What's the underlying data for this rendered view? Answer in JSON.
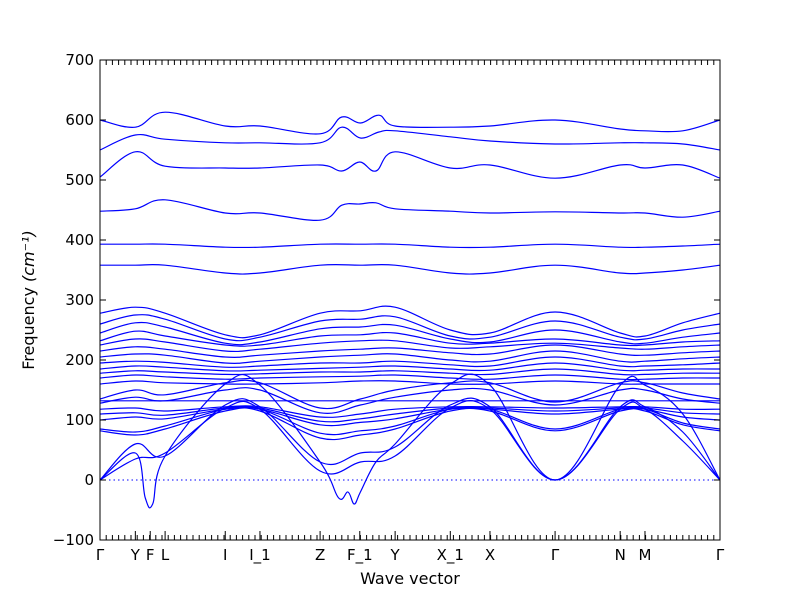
{
  "chart_data": {
    "type": "line",
    "title": "",
    "xlabel": "Wave vector",
    "ylabel": "Frequency",
    "ylabel_unit": "(cm⁻¹)",
    "ylim": [
      -100,
      700
    ],
    "yticks": [
      -100,
      0,
      100,
      200,
      300,
      400,
      500,
      600,
      700
    ],
    "grid": false,
    "legend": "none",
    "line_color": "#0000ff",
    "reference_line": {
      "y": 0,
      "style": "dotted"
    },
    "high_symmetry_points": [
      {
        "label": "Γ",
        "x": 0
      },
      {
        "label": "Y",
        "x": 0.057
      },
      {
        "label": "F",
        "x": 0.081
      },
      {
        "label": "L",
        "x": 0.105
      },
      {
        "label": "I",
        "x": 0.202
      },
      {
        "label": "I_1",
        "x": 0.258
      },
      {
        "label": "Z",
        "x": 0.355
      },
      {
        "label": "F_1",
        "x": 0.419
      },
      {
        "label": "Y",
        "x": 0.476
      },
      {
        "label": "X_1",
        "x": 0.565
      },
      {
        "label": "X",
        "x": 0.629
      },
      {
        "label": "Γ",
        "x": 0.734
      },
      {
        "label": "N",
        "x": 0.839
      },
      {
        "label": "M",
        "x": 0.879
      },
      {
        "label": "Γ",
        "x": 1.0
      }
    ],
    "series": [
      {
        "x": [
          0,
          0.057,
          0.105,
          0.202,
          0.258,
          0.355,
          0.39,
          0.42,
          0.45,
          0.476,
          0.565,
          0.629,
          0.734,
          0.839,
          0.879,
          0.94,
          1.0
        ],
        "y": [
          600,
          588,
          613,
          590,
          590,
          577,
          605,
          595,
          608,
          590,
          588,
          590,
          600,
          585,
          582,
          582,
          600
        ]
      },
      {
        "x": [
          0,
          0.057,
          0.105,
          0.202,
          0.258,
          0.355,
          0.39,
          0.42,
          0.45,
          0.476,
          0.565,
          0.629,
          0.734,
          0.839,
          0.879,
          0.94,
          1.0
        ],
        "y": [
          550,
          575,
          568,
          562,
          562,
          562,
          588,
          570,
          580,
          582,
          572,
          565,
          560,
          562,
          562,
          560,
          550
        ]
      },
      {
        "x": [
          0,
          0.057,
          0.105,
          0.202,
          0.258,
          0.355,
          0.39,
          0.419,
          0.445,
          0.476,
          0.565,
          0.629,
          0.734,
          0.839,
          0.879,
          0.94,
          1.0
        ],
        "y": [
          505,
          547,
          523,
          520,
          520,
          525,
          515,
          530,
          515,
          547,
          520,
          525,
          503,
          525,
          520,
          525,
          503
        ]
      },
      {
        "x": [
          0,
          0.057,
          0.105,
          0.202,
          0.258,
          0.355,
          0.39,
          0.419,
          0.445,
          0.476,
          0.565,
          0.629,
          0.734,
          0.839,
          0.879,
          0.94,
          1.0
        ],
        "y": [
          448,
          452,
          467,
          445,
          445,
          433,
          458,
          460,
          462,
          452,
          448,
          445,
          447,
          445,
          445,
          438,
          448
        ]
      },
      {
        "x": [
          0,
          0.057,
          0.105,
          0.202,
          0.258,
          0.355,
          0.42,
          0.476,
          0.565,
          0.629,
          0.734,
          0.839,
          0.879,
          0.94,
          1.0
        ],
        "y": [
          393,
          393,
          393,
          388,
          388,
          393,
          393,
          393,
          388,
          388,
          393,
          388,
          388,
          390,
          393
        ]
      },
      {
        "x": [
          0,
          0.057,
          0.105,
          0.202,
          0.258,
          0.355,
          0.42,
          0.476,
          0.565,
          0.629,
          0.734,
          0.839,
          0.879,
          0.94,
          1.0
        ],
        "y": [
          358,
          358,
          358,
          345,
          345,
          358,
          358,
          358,
          345,
          345,
          358,
          345,
          345,
          350,
          358
        ]
      },
      {
        "x": [
          0,
          0.057,
          0.105,
          0.202,
          0.258,
          0.355,
          0.42,
          0.476,
          0.565,
          0.629,
          0.734,
          0.839,
          0.879,
          0.94,
          1.0
        ],
        "y": [
          278,
          288,
          278,
          242,
          242,
          278,
          282,
          288,
          250,
          245,
          280,
          245,
          240,
          262,
          278
        ]
      },
      {
        "x": [
          0,
          0.057,
          0.105,
          0.202,
          0.258,
          0.355,
          0.42,
          0.476,
          0.565,
          0.629,
          0.734,
          0.839,
          0.879,
          0.94,
          1.0
        ],
        "y": [
          260,
          275,
          268,
          235,
          238,
          265,
          268,
          272,
          240,
          238,
          265,
          238,
          235,
          250,
          260
        ]
      },
      {
        "x": [
          0,
          0.057,
          0.105,
          0.202,
          0.258,
          0.355,
          0.42,
          0.476,
          0.565,
          0.629,
          0.734,
          0.839,
          0.879,
          0.94,
          1.0
        ],
        "y": [
          245,
          262,
          255,
          228,
          230,
          252,
          255,
          258,
          235,
          230,
          250,
          230,
          228,
          238,
          245
        ]
      },
      {
        "x": [
          0,
          0.057,
          0.105,
          0.202,
          0.258,
          0.355,
          0.42,
          0.476,
          0.565,
          0.629,
          0.734,
          0.839,
          0.879,
          0.94,
          1.0
        ],
        "y": [
          232,
          248,
          240,
          225,
          225,
          240,
          242,
          245,
          228,
          228,
          235,
          225,
          225,
          230,
          232
        ]
      },
      {
        "x": [
          0,
          0.057,
          0.105,
          0.202,
          0.258,
          0.355,
          0.42,
          0.476,
          0.565,
          0.629,
          0.734,
          0.839,
          0.879,
          0.94,
          1.0
        ],
        "y": [
          225,
          235,
          230,
          215,
          218,
          228,
          232,
          232,
          220,
          222,
          228,
          220,
          218,
          222,
          225
        ]
      },
      {
        "x": [
          0,
          0.057,
          0.105,
          0.202,
          0.258,
          0.355,
          0.42,
          0.476,
          0.565,
          0.629,
          0.734,
          0.839,
          0.879,
          0.94,
          1.0
        ],
        "y": [
          215,
          222,
          218,
          205,
          208,
          215,
          218,
          220,
          212,
          210,
          225,
          210,
          208,
          212,
          215
        ]
      },
      {
        "x": [
          0,
          0.057,
          0.105,
          0.202,
          0.258,
          0.355,
          0.42,
          0.476,
          0.565,
          0.629,
          0.734,
          0.839,
          0.879,
          0.94,
          1.0
        ],
        "y": [
          205,
          210,
          208,
          195,
          198,
          205,
          208,
          210,
          200,
          198,
          215,
          198,
          198,
          202,
          205
        ]
      },
      {
        "x": [
          0,
          0.057,
          0.105,
          0.202,
          0.258,
          0.355,
          0.42,
          0.476,
          0.565,
          0.629,
          0.734,
          0.839,
          0.879,
          0.94,
          1.0
        ],
        "y": [
          195,
          198,
          196,
          188,
          190,
          195,
          195,
          198,
          192,
          190,
          205,
          190,
          190,
          192,
          195
        ]
      },
      {
        "x": [
          0,
          0.057,
          0.105,
          0.202,
          0.258,
          0.355,
          0.42,
          0.476,
          0.565,
          0.629,
          0.734,
          0.839,
          0.879,
          0.94,
          1.0
        ],
        "y": [
          185,
          190,
          188,
          182,
          183,
          186,
          188,
          190,
          185,
          183,
          195,
          183,
          183,
          185,
          185
        ]
      },
      {
        "x": [
          0,
          0.057,
          0.105,
          0.202,
          0.258,
          0.355,
          0.42,
          0.476,
          0.565,
          0.629,
          0.734,
          0.839,
          0.879,
          0.94,
          1.0
        ],
        "y": [
          178,
          182,
          180,
          176,
          177,
          180,
          180,
          182,
          178,
          176,
          185,
          176,
          176,
          178,
          178
        ]
      },
      {
        "x": [
          0,
          0.057,
          0.105,
          0.202,
          0.258,
          0.355,
          0.42,
          0.476,
          0.565,
          0.629,
          0.734,
          0.839,
          0.879,
          0.94,
          1.0
        ],
        "y": [
          170,
          175,
          172,
          168,
          170,
          172,
          173,
          175,
          170,
          168,
          175,
          168,
          168,
          170,
          170
        ]
      },
      {
        "x": [
          0,
          0.057,
          0.105,
          0.202,
          0.258,
          0.355,
          0.42,
          0.476,
          0.565,
          0.629,
          0.734,
          0.839,
          0.879,
          0.94,
          1.0
        ],
        "y": [
          160,
          165,
          162,
          160,
          160,
          162,
          165,
          165,
          160,
          160,
          165,
          160,
          160,
          160,
          160
        ]
      },
      {
        "x": [
          0,
          0.057,
          0.105,
          0.202,
          0.258,
          0.355,
          0.42,
          0.476,
          0.565,
          0.629,
          0.734,
          0.839,
          0.879,
          0.94,
          1.0
        ],
        "y": [
          135,
          150,
          142,
          162,
          162,
          120,
          135,
          150,
          162,
          162,
          130,
          162,
          162,
          145,
          135
        ]
      },
      {
        "x": [
          0,
          0.057,
          0.105,
          0.202,
          0.258,
          0.355,
          0.42,
          0.476,
          0.565,
          0.629,
          0.734,
          0.839,
          0.879,
          0.94,
          1.0
        ],
        "y": [
          128,
          138,
          132,
          150,
          150,
          112,
          125,
          138,
          150,
          150,
          125,
          150,
          150,
          135,
          128
        ]
      },
      {
        "x": [
          0,
          0.057,
          0.105,
          0.202,
          0.258,
          0.355,
          0.42,
          0.476,
          0.565,
          0.629,
          0.734,
          0.839,
          0.879,
          0.94,
          1.0
        ],
        "y": [
          132,
          132,
          132,
          132,
          132,
          132,
          132,
          132,
          132,
          132,
          132,
          132,
          132,
          132,
          132
        ]
      },
      {
        "x": [
          0,
          0.057,
          0.105,
          0.202,
          0.258,
          0.355,
          0.42,
          0.476,
          0.565,
          0.629,
          0.734,
          0.839,
          0.879,
          0.94,
          1.0
        ],
        "y": [
          118,
          120,
          115,
          122,
          122,
          105,
          110,
          118,
          122,
          122,
          120,
          122,
          122,
          118,
          118
        ]
      },
      {
        "x": [
          0,
          0.057,
          0.105,
          0.202,
          0.258,
          0.355,
          0.42,
          0.476,
          0.565,
          0.629,
          0.734,
          0.839,
          0.879,
          0.94,
          1.0
        ],
        "y": [
          110,
          112,
          108,
          120,
          120,
          98,
          102,
          110,
          120,
          120,
          115,
          120,
          120,
          112,
          110
        ]
      },
      {
        "x": [
          0,
          0.057,
          0.105,
          0.202,
          0.258,
          0.355,
          0.42,
          0.476,
          0.565,
          0.629,
          0.734,
          0.839,
          0.879,
          0.94,
          1.0
        ],
        "y": [
          100,
          105,
          102,
          118,
          118,
          92,
          96,
          102,
          118,
          118,
          110,
          118,
          118,
          105,
          100
        ]
      },
      {
        "x": [
          0,
          0.057,
          0.105,
          0.202,
          0.258,
          0.355,
          0.42,
          0.476,
          0.565,
          0.629,
          0.734,
          0.839,
          0.879,
          0.94,
          1.0
        ],
        "y": [
          85,
          80,
          90,
          118,
          118,
          78,
          82,
          90,
          118,
          118,
          85,
          118,
          118,
          95,
          85
        ]
      },
      {
        "x": [
          0,
          0.057,
          0.105,
          0.202,
          0.258,
          0.355,
          0.42,
          0.476,
          0.565,
          0.629,
          0.734,
          0.839,
          0.879,
          0.94,
          1.0
        ],
        "y": [
          82,
          75,
          85,
          115,
          115,
          70,
          75,
          85,
          115,
          115,
          82,
          115,
          115,
          92,
          82
        ]
      },
      {
        "x": [
          0,
          0.057,
          0.105,
          0.202,
          0.258,
          0.355,
          0.42,
          0.476,
          0.565,
          0.629,
          0.734,
          0.839,
          0.879,
          0.94,
          1.0
        ],
        "y": [
          0,
          35,
          45,
          120,
          118,
          15,
          30,
          40,
          120,
          118,
          0,
          118,
          118,
          65,
          0
        ]
      },
      {
        "x": [
          0,
          0.057,
          0.105,
          0.202,
          0.258,
          0.355,
          0.42,
          0.476,
          0.565,
          0.629,
          0.734,
          0.839,
          0.879,
          0.94,
          1.0
        ],
        "y": [
          0,
          60,
          40,
          125,
          122,
          30,
          45,
          55,
          125,
          122,
          0,
          122,
          122,
          80,
          0
        ]
      },
      {
        "x": [
          0,
          0.057,
          0.073,
          0.085,
          0.105,
          0.202,
          0.258,
          0.355,
          0.385,
          0.4,
          0.41,
          0.42,
          0.445,
          0.476,
          0.565,
          0.629,
          0.734,
          0.839,
          0.879,
          0.94,
          1.0
        ],
        "y": [
          0,
          45,
          -30,
          -40,
          40,
          160,
          158,
          30,
          -30,
          -20,
          -40,
          -20,
          30,
          60,
          160,
          158,
          0,
          158,
          158,
          110,
          0
        ]
      }
    ]
  }
}
